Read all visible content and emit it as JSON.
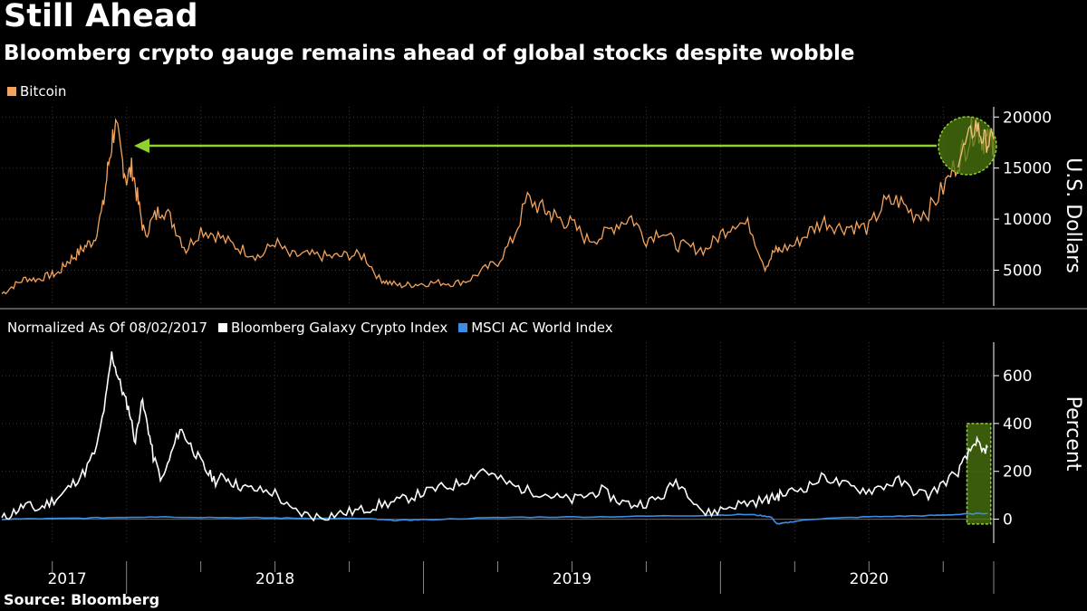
{
  "header": {
    "title": "Still Ahead",
    "subtitle": "Bloomberg crypto gauge remains ahead of global stocks despite wobble"
  },
  "source": "Source: Bloomberg",
  "colors": {
    "bitcoin": "#f5a35c",
    "crypto_index": "#ffffff",
    "msci": "#3a8ee6",
    "highlight_arrow": "#8fd12e",
    "highlight_fill": "#4f7a10",
    "background": "#000000"
  },
  "chart_data": [
    {
      "type": "line",
      "legend": [
        {
          "name": "Bitcoin",
          "color": "#f5a35c"
        }
      ],
      "ylabel": "U.S. Dollars",
      "yticks": [
        5000,
        10000,
        15000,
        20000
      ],
      "ylim": [
        1500,
        21000
      ],
      "xlim": [
        2017.58,
        2020.92
      ],
      "series": [
        {
          "name": "Bitcoin",
          "x": [
            2017.58,
            2017.62,
            2017.66,
            2017.7,
            2017.74,
            2017.77,
            2017.8,
            2017.83,
            2017.86,
            2017.89,
            2017.92,
            2017.94,
            2017.96,
            2017.98,
            2018.0,
            2018.02,
            2018.04,
            2018.06,
            2018.09,
            2018.12,
            2018.16,
            2018.2,
            2018.25,
            2018.3,
            2018.35,
            2018.4,
            2018.45,
            2018.5,
            2018.55,
            2018.6,
            2018.65,
            2018.7,
            2018.75,
            2018.8,
            2018.85,
            2018.88,
            2018.92,
            2018.96,
            2019.0,
            2019.05,
            2019.1,
            2019.15,
            2019.2,
            2019.25,
            2019.3,
            2019.35,
            2019.4,
            2019.43,
            2019.46,
            2019.5,
            2019.55,
            2019.6,
            2019.65,
            2019.7,
            2019.75,
            2019.8,
            2019.85,
            2019.9,
            2019.95,
            2020.0,
            2020.05,
            2020.1,
            2020.15,
            2020.18,
            2020.2,
            2020.25,
            2020.3,
            2020.35,
            2020.4,
            2020.45,
            2020.5,
            2020.55,
            2020.6,
            2020.65,
            2020.7,
            2020.75,
            2020.8,
            2020.83,
            2020.86,
            2020.88,
            2020.9,
            2020.92
          ],
          "values": [
            2700,
            3500,
            4200,
            4100,
            4500,
            4700,
            5800,
            6500,
            7300,
            8000,
            11000,
            15500,
            19300,
            16500,
            14000,
            15000,
            11500,
            8500,
            10000,
            11200,
            9500,
            7000,
            9000,
            8500,
            7600,
            6900,
            6300,
            7800,
            6400,
            6500,
            6400,
            6300,
            6500,
            6400,
            4200,
            3800,
            3500,
            3600,
            3700,
            3800,
            3700,
            4000,
            5000,
            5800,
            8000,
            12000,
            11000,
            10500,
            10000,
            9500,
            8000,
            8300,
            9500,
            10200,
            8000,
            9000,
            7500,
            7200,
            7000,
            8500,
            9800,
            9300,
            5300,
            6800,
            7000,
            7500,
            8800,
            9800,
            9200,
            9300,
            9100,
            11500,
            11800,
            10500,
            10800,
            13000,
            15800,
            17500,
            19300,
            18000,
            17500,
            17800
          ]
        }
      ],
      "annotations": [
        {
          "type": "arrow",
          "from": "2020 highlight",
          "to": "2017 peak",
          "label": ""
        }
      ]
    },
    {
      "type": "line",
      "title": "Normalized As Of 08/02/2017",
      "legend": [
        {
          "name": "Bloomberg Galaxy Crypto Index",
          "color": "#ffffff"
        },
        {
          "name": "MSCI AC World Index",
          "color": "#3a8ee6"
        }
      ],
      "ylabel": "Percent",
      "yticks": [
        0,
        200,
        400,
        600
      ],
      "ylim": [
        -100,
        740
      ],
      "xticks": [
        "2017",
        "2018",
        "2019",
        "2020"
      ],
      "xlim": [
        2017.58,
        2020.92
      ],
      "series": [
        {
          "name": "Bloomberg Galaxy Crypto Index",
          "x": [
            2017.58,
            2017.62,
            2017.66,
            2017.7,
            2017.74,
            2017.78,
            2017.82,
            2017.86,
            2017.9,
            2017.93,
            2017.95,
            2017.97,
            2017.99,
            2018.01,
            2018.03,
            2018.05,
            2018.07,
            2018.09,
            2018.12,
            2018.15,
            2018.18,
            2018.21,
            2018.24,
            2018.27,
            2018.3,
            2018.33,
            2018.36,
            2018.4,
            2018.45,
            2018.5,
            2018.55,
            2018.6,
            2018.65,
            2018.7,
            2018.75,
            2018.8,
            2018.85,
            2018.9,
            2018.95,
            2019.0,
            2019.05,
            2019.1,
            2019.15,
            2019.2,
            2019.25,
            2019.3,
            2019.35,
            2019.4,
            2019.45,
            2019.5,
            2019.55,
            2019.6,
            2019.65,
            2019.7,
            2019.75,
            2019.8,
            2019.85,
            2019.9,
            2019.95,
            2020.0,
            2020.05,
            2020.1,
            2020.15,
            2020.18,
            2020.2,
            2020.25,
            2020.3,
            2020.35,
            2020.4,
            2020.45,
            2020.5,
            2020.55,
            2020.6,
            2020.65,
            2020.7,
            2020.75,
            2020.8,
            2020.83,
            2020.86,
            2020.88,
            2020.9
          ],
          "values": [
            0,
            30,
            60,
            40,
            70,
            100,
            150,
            200,
            300,
            500,
            690,
            600,
            520,
            450,
            320,
            500,
            400,
            260,
            160,
            270,
            380,
            320,
            260,
            200,
            160,
            180,
            150,
            130,
            120,
            110,
            40,
            20,
            10,
            20,
            30,
            40,
            60,
            70,
            90,
            110,
            130,
            140,
            170,
            210,
            170,
            140,
            120,
            110,
            90,
            80,
            100,
            120,
            80,
            60,
            70,
            90,
            160,
            100,
            20,
            40,
            60,
            70,
            80,
            90,
            100,
            120,
            140,
            180,
            150,
            130,
            120,
            140,
            160,
            120,
            100,
            150,
            200,
            260,
            330,
            280,
            300
          ]
        },
        {
          "name": "MSCI AC World Index",
          "x": [
            2017.58,
            2017.8,
            2018.0,
            2018.1,
            2018.4,
            2018.6,
            2018.8,
            2018.9,
            2019.0,
            2019.3,
            2019.6,
            2019.9,
            2020.1,
            2020.17,
            2020.19,
            2020.22,
            2020.3,
            2020.5,
            2020.7,
            2020.8,
            2020.9
          ],
          "values": [
            0,
            3,
            8,
            10,
            6,
            4,
            2,
            -5,
            -2,
            8,
            10,
            15,
            20,
            10,
            -20,
            -15,
            0,
            10,
            15,
            20,
            25
          ]
        }
      ],
      "annotations": [
        {
          "type": "highlight-box",
          "region": "2020 end",
          "label": ""
        }
      ]
    }
  ]
}
